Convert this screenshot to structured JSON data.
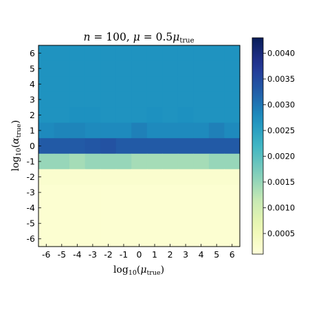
{
  "chart_data": {
    "type": "heatmap",
    "title": "n = 100,  μ = 0.5μtrue",
    "xlabel": "log10(μtrue)",
    "ylabel": "log10(αtrue)",
    "x": [
      -6,
      -5,
      -4,
      -3,
      -2,
      -1,
      0,
      1,
      2,
      3,
      4,
      5,
      6
    ],
    "y": [
      6,
      5,
      4,
      3,
      2,
      1,
      0,
      -1,
      -2,
      -3,
      -4,
      -5,
      -6
    ],
    "xticks": [
      "-6",
      "-5",
      "-4",
      "-3",
      "-2",
      "-1",
      "0",
      "1",
      "2",
      "3",
      "4",
      "5",
      "6"
    ],
    "yticks": [
      "6",
      "5",
      "4",
      "3",
      "2",
      "1",
      "0",
      "-1",
      "-2",
      "-3",
      "-4",
      "-5",
      "-6"
    ],
    "values": [
      [
        0.0027,
        0.0027,
        0.0027,
        0.0027,
        0.0027,
        0.0027,
        0.0027,
        0.0027,
        0.0027,
        0.0027,
        0.0027,
        0.0027,
        0.0027
      ],
      [
        0.0027,
        0.0027,
        0.0027,
        0.0027,
        0.0027,
        0.0027,
        0.0027,
        0.0027,
        0.0027,
        0.0027,
        0.0027,
        0.0027,
        0.0027
      ],
      [
        0.0027,
        0.0027,
        0.0027,
        0.0027,
        0.0027,
        0.0027,
        0.0027,
        0.0027,
        0.0027,
        0.0027,
        0.0027,
        0.0027,
        0.0027
      ],
      [
        0.0027,
        0.0027,
        0.0027,
        0.0027,
        0.0027,
        0.0027,
        0.0027,
        0.0027,
        0.0027,
        0.0027,
        0.0027,
        0.0027,
        0.0027
      ],
      [
        0.0027,
        0.0027,
        0.00272,
        0.00272,
        0.0027,
        0.0027,
        0.0027,
        0.00272,
        0.0027,
        0.00272,
        0.0027,
        0.0027,
        0.0027
      ],
      [
        0.0028,
        0.00285,
        0.00285,
        0.0028,
        0.0028,
        0.0028,
        0.0029,
        0.0028,
        0.0028,
        0.0028,
        0.0028,
        0.0029,
        0.0028
      ],
      [
        0.0033,
        0.0033,
        0.0033,
        0.00335,
        0.0034,
        0.0033,
        0.0033,
        0.0033,
        0.0033,
        0.0033,
        0.0033,
        0.0033,
        0.0033
      ],
      [
        0.0015,
        0.0015,
        0.0014,
        0.0015,
        0.0015,
        0.0015,
        0.0014,
        0.0014,
        0.0014,
        0.0014,
        0.0014,
        0.0015,
        0.0015
      ],
      [
        0.00025,
        0.00025,
        0.00025,
        0.00025,
        0.00025,
        0.00025,
        0.00025,
        0.00025,
        0.00025,
        0.00025,
        0.00025,
        0.00025,
        0.00025
      ],
      [
        0.0002,
        0.0002,
        0.0002,
        0.0002,
        0.0002,
        0.0002,
        0.0002,
        0.0002,
        0.0002,
        0.0002,
        0.0002,
        0.0002,
        0.0002
      ],
      [
        0.0002,
        0.0002,
        0.0002,
        0.0002,
        0.0002,
        0.0002,
        0.0002,
        0.0002,
        0.0002,
        0.0002,
        0.0002,
        0.0002,
        0.0002
      ],
      [
        0.0002,
        0.0002,
        0.0002,
        0.0002,
        0.0002,
        0.0002,
        0.0002,
        0.0002,
        0.0002,
        0.0002,
        0.0002,
        0.0002,
        0.0002
      ],
      [
        0.0002,
        0.0002,
        0.0002,
        0.0002,
        0.0002,
        0.0002,
        0.0002,
        0.0002,
        0.0002,
        0.0002,
        0.0002,
        0.0002,
        0.0002
      ]
    ],
    "colorbar": {
      "colormap": "YlGnBu",
      "min": 0.0001,
      "max": 0.0043,
      "ticks": [
        0.0005,
        0.001,
        0.0015,
        0.002,
        0.0025,
        0.003,
        0.0035,
        0.004
      ],
      "ticklabels": [
        "0.0005",
        "0.0010",
        "0.0015",
        "0.0020",
        "0.0025",
        "0.0030",
        "0.0035",
        "0.0040"
      ]
    },
    "grid": false
  }
}
